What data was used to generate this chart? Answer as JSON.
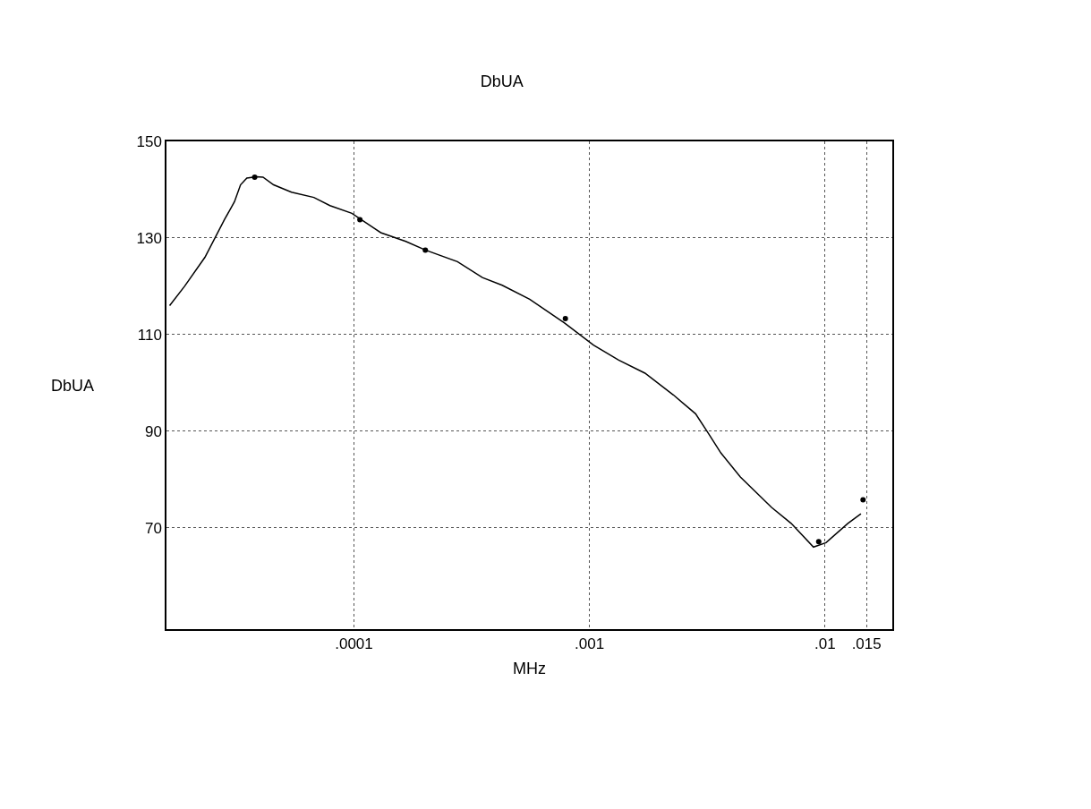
{
  "chart_data": {
    "type": "line",
    "title": "DbUA",
    "xlabel": "MHz",
    "ylabel": "DbUA",
    "log": "x",
    "grid": true,
    "xlim": [
      1.6e-05,
      0.0193
    ],
    "ylim": [
      49,
      150
    ],
    "xticks": [
      {
        "value": 0.0001,
        "label": ".0001"
      },
      {
        "value": 0.001,
        "label": ".001"
      },
      {
        "value": 0.01,
        "label": ".01"
      },
      {
        "value": 0.015,
        "label": ".015"
      }
    ],
    "yticks": [
      70,
      90,
      110,
      130,
      150
    ],
    "series": [
      {
        "color": "#000000",
        "marker": "none",
        "line_style": "solid",
        "x": [
          1.65e-05,
          1.91e-05,
          2.33e-05,
          2.82e-05,
          3.11e-05,
          3.3e-05,
          3.51e-05,
          3.86e-05,
          4.11e-05,
          4.56e-05,
          5.43e-05,
          6.76e-05,
          7.91e-05,
          9.8e-05,
          0.00013,
          0.000166,
          0.000201,
          0.000275,
          0.000351,
          0.000426,
          0.000557,
          0.000783,
          0.00104,
          0.00133,
          0.00172,
          0.00227,
          0.00282,
          0.00319,
          0.00361,
          0.00437,
          0.00593,
          0.00718,
          0.00893,
          0.0101,
          0.0125,
          0.0142
        ],
        "values": [
          116,
          120,
          126,
          133.8,
          137.5,
          141,
          142.4,
          142.7,
          142.6,
          141,
          139.5,
          138.4,
          136.7,
          135.1,
          131.1,
          129.3,
          127.5,
          125.1,
          121.8,
          120.2,
          117.3,
          112.4,
          107.8,
          104.7,
          102,
          97.5,
          93.6,
          89.6,
          85.5,
          80.5,
          74.2,
          70.9,
          66,
          66.9,
          70.9,
          72.9
        ]
      },
      {
        "type": "scatter",
        "color": "#000000",
        "marker": "circle",
        "x": [
          3.79e-05,
          0.000106,
          0.000201,
          0.00079,
          0.0094,
          0.0145
        ],
        "values": [
          142.6,
          133.8,
          127.5,
          113.3,
          67.1,
          75.8
        ]
      }
    ]
  }
}
